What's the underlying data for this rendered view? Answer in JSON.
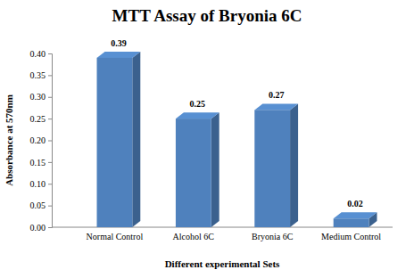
{
  "chart_data": {
    "type": "bar",
    "title": "MTT Assay of Bryonia 6C",
    "x_label": "Different experimental Sets",
    "y_label": "Absorbance at 570nm",
    "categories": [
      "Normal Control",
      "Alcohol 6C",
      "Bryonia 6C",
      "Medium Control"
    ],
    "values": [
      0.39,
      0.25,
      0.27,
      0.02
    ],
    "color": "#4f81bd",
    "ylim": [
      0,
      0.4
    ],
    "yticks": [
      {
        "value": 0,
        "label": "0.00"
      },
      {
        "value": 0.05,
        "label": "0.05"
      },
      {
        "value": 0.1,
        "label": "0.10"
      },
      {
        "value": 0.15,
        "label": "0.15"
      },
      {
        "value": 0.2,
        "label": "0.20"
      },
      {
        "value": 0.25,
        "label": "0.25"
      },
      {
        "value": 0.3,
        "label": "0.30"
      },
      {
        "value": 0.35,
        "label": "0.35"
      },
      {
        "value": 0.4,
        "label": "0.40"
      }
    ],
    "grid": false,
    "data_labels": true
  }
}
